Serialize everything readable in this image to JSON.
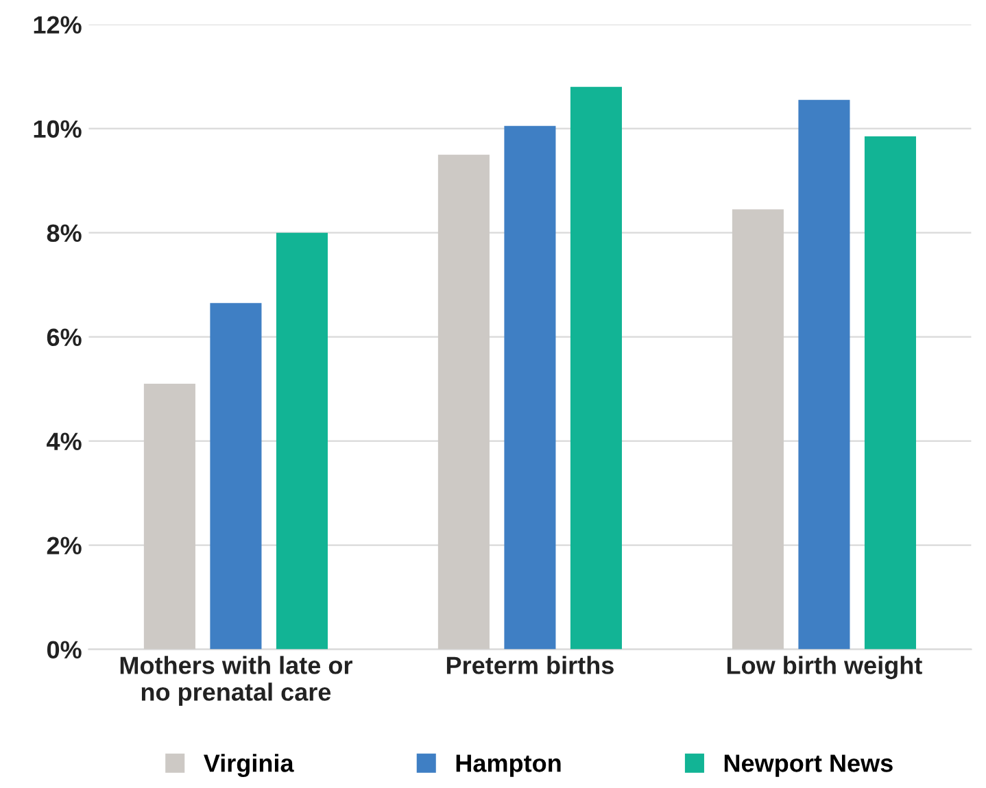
{
  "chart_data": {
    "type": "bar",
    "categories": [
      "Mothers with late or\nno prenatal care",
      "Preterm births",
      "Low birth weight"
    ],
    "series": [
      {
        "name": "Virginia",
        "color": "#cdc9c5",
        "values": [
          5.1,
          9.5,
          8.45
        ]
      },
      {
        "name": "Hampton",
        "color": "#3f7fc4",
        "values": [
          6.65,
          10.05,
          10.55
        ]
      },
      {
        "name": "Newport News",
        "color": "#12b495",
        "values": [
          8.0,
          10.8,
          9.85
        ]
      }
    ],
    "ylim": [
      0,
      12
    ],
    "yticks": [
      {
        "value": 0,
        "label": "0%"
      },
      {
        "value": 2,
        "label": "2%"
      },
      {
        "value": 4,
        "label": "4%"
      },
      {
        "value": 6,
        "label": "6%"
      },
      {
        "value": 8,
        "label": "8%"
      },
      {
        "value": 10,
        "label": "10%"
      },
      {
        "value": 12,
        "label": "12%"
      }
    ],
    "grid": "y",
    "legend": "bottom"
  }
}
